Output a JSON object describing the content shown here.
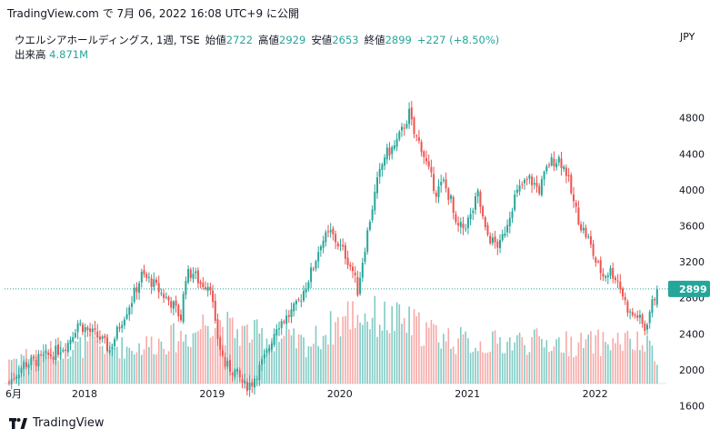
{
  "header": {
    "site": "TradingView.com",
    "connector": "で",
    "timestamp": "7月 06, 2022 16:08 UTC+9",
    "publish": "に公開"
  },
  "legend": {
    "symbol": "ウエルシアホールディングス",
    "interval": "1週",
    "exchange": "TSE",
    "open_label": "始値",
    "open_value": "2722",
    "high_label": "高値",
    "high_value": "2929",
    "low_label": "安値",
    "low_value": "2653",
    "close_label": "終値",
    "close_value": "2899",
    "change": "+227 (+8.50%)",
    "volume_label": "出来高",
    "volume_value": "4.871M"
  },
  "currency": "JPY",
  "footer": {
    "brand": "TradingView"
  },
  "colors": {
    "up": "#26a69a",
    "down": "#ef5350",
    "volume_up": "#80cbc4",
    "volume_down": "#f7a9a7",
    "text": "#131722"
  },
  "chart_data": {
    "type": "candlestick",
    "ylim": [
      1450,
      5050
    ],
    "y_ticks": [
      1600,
      2000,
      2400,
      2800,
      3200,
      3600,
      4000,
      4400,
      4800
    ],
    "x_ticks": [
      {
        "label": "6月",
        "week": 0
      },
      {
        "label": "2018",
        "week": 30
      },
      {
        "label": "2019",
        "week": 82
      },
      {
        "label": "2020",
        "week": 134
      },
      {
        "label": "2021",
        "week": 186
      },
      {
        "label": "2022",
        "week": 238
      }
    ],
    "last_price": 2899,
    "last_price_label": "2899",
    "anchors": [
      [
        0,
        1860
      ],
      [
        6,
        2060
      ],
      [
        12,
        2110
      ],
      [
        18,
        2180
      ],
      [
        24,
        2300
      ],
      [
        28,
        2520
      ],
      [
        32,
        2440
      ],
      [
        37,
        2350
      ],
      [
        41,
        2220
      ],
      [
        46,
        2560
      ],
      [
        50,
        2780
      ],
      [
        54,
        3050
      ],
      [
        58,
        2980
      ],
      [
        62,
        2850
      ],
      [
        66,
        2750
      ],
      [
        70,
        2580
      ],
      [
        72,
        3050
      ],
      [
        75,
        3080
      ],
      [
        78,
        2960
      ],
      [
        82,
        2950
      ],
      [
        84,
        2480
      ],
      [
        86,
        2240
      ],
      [
        88,
        2050
      ],
      [
        92,
        1980
      ],
      [
        96,
        1820
      ],
      [
        99,
        1860
      ],
      [
        102,
        2020
      ],
      [
        105,
        2180
      ],
      [
        109,
        2500
      ],
      [
        113,
        2580
      ],
      [
        117,
        2700
      ],
      [
        120,
        2880
      ],
      [
        124,
        3150
      ],
      [
        127,
        3420
      ],
      [
        131,
        3520
      ],
      [
        134,
        3400
      ],
      [
        137,
        3280
      ],
      [
        140,
        3100
      ],
      [
        142,
        2880
      ],
      [
        144,
        3220
      ],
      [
        147,
        3680
      ],
      [
        150,
        4080
      ],
      [
        153,
        4380
      ],
      [
        157,
        4480
      ],
      [
        160,
        4650
      ],
      [
        163,
        4850
      ],
      [
        165,
        4620
      ],
      [
        168,
        4480
      ],
      [
        171,
        4200
      ],
      [
        174,
        3980
      ],
      [
        177,
        4080
      ],
      [
        180,
        3880
      ],
      [
        182,
        3580
      ],
      [
        185,
        3580
      ],
      [
        188,
        3700
      ],
      [
        191,
        3950
      ],
      [
        194,
        3540
      ],
      [
        197,
        3420
      ],
      [
        200,
        3380
      ],
      [
        203,
        3650
      ],
      [
        206,
        3920
      ],
      [
        209,
        4050
      ],
      [
        212,
        4120
      ],
      [
        216,
        4000
      ],
      [
        220,
        4300
      ],
      [
        224,
        4350
      ],
      [
        227,
        4200
      ],
      [
        230,
        3850
      ],
      [
        233,
        3600
      ],
      [
        236,
        3450
      ],
      [
        239,
        3200
      ],
      [
        242,
        3050
      ],
      [
        245,
        3100
      ],
      [
        248,
        3000
      ],
      [
        251,
        2750
      ],
      [
        253,
        2620
      ],
      [
        256,
        2600
      ],
      [
        259,
        2450
      ],
      [
        261,
        2650
      ],
      [
        264,
        2899
      ]
    ],
    "volume": [
      {
        "week": 5,
        "height": 0.4
      },
      {
        "week": 35,
        "height": 0.55
      },
      {
        "week": 50,
        "height": 0.5
      },
      {
        "week": 75,
        "height": 0.7
      },
      {
        "week": 82,
        "height": 0.95
      },
      {
        "week": 90,
        "height": 0.75
      },
      {
        "week": 122,
        "height": 0.55
      },
      {
        "week": 140,
        "height": 1.0
      },
      {
        "week": 146,
        "height": 0.95
      },
      {
        "week": 162,
        "height": 0.85
      },
      {
        "week": 178,
        "height": 0.65
      },
      {
        "week": 190,
        "height": 0.55
      },
      {
        "week": 210,
        "height": 0.6
      },
      {
        "week": 232,
        "height": 0.55
      },
      {
        "week": 250,
        "height": 0.6
      },
      {
        "week": 262,
        "height": 0.5
      }
    ]
  }
}
